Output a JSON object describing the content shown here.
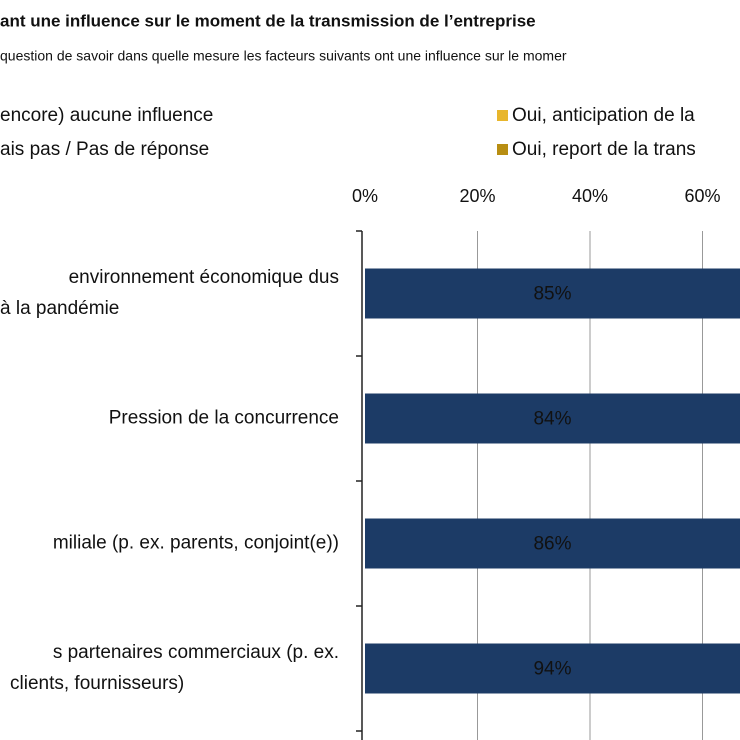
{
  "chart_data": {
    "type": "stacked-barh",
    "title": "ant une influence sur le moment de la transmission de l’entreprise",
    "subtitle": "question de savoir dans quelle mesure les facteurs suivants ont une influence sur le momer",
    "categories": [
      [
        "environnement économique dus",
        "à la pandémie"
      ],
      [
        "Pression de la concurrence"
      ],
      [
        "miliale (p. ex. parents, conjoint(e))"
      ],
      [
        "s partenaires commerciaux (p. ex.",
        "clients, fournisseurs)"
      ]
    ],
    "series": [
      {
        "name": "encore) aucune influence",
        "color": "#1c3b66",
        "values": [
          85,
          84,
          86,
          94
        ],
        "value_labels": [
          "85%",
          "84%",
          "86%",
          "94%"
        ]
      },
      {
        "name": "Oui, anticipation de la",
        "color": "#e8b62c",
        "values": [
          null,
          null,
          null,
          null
        ]
      },
      {
        "name": "Oui, report de la trans",
        "color": "#b88e12",
        "values": [
          null,
          null,
          null,
          null
        ]
      },
      {
        "name": "ais pas / Pas de réponse",
        "color": "#a6a6a6",
        "values": [
          null,
          null,
          null,
          null
        ]
      }
    ],
    "xlim": [
      0,
      100
    ],
    "xticks": [
      {
        "value": 0,
        "label": "0%"
      },
      {
        "value": 20,
        "label": "20%"
      },
      {
        "value": 40,
        "label": "40%"
      },
      {
        "value": 60,
        "label": "60%"
      }
    ],
    "grid": true
  }
}
